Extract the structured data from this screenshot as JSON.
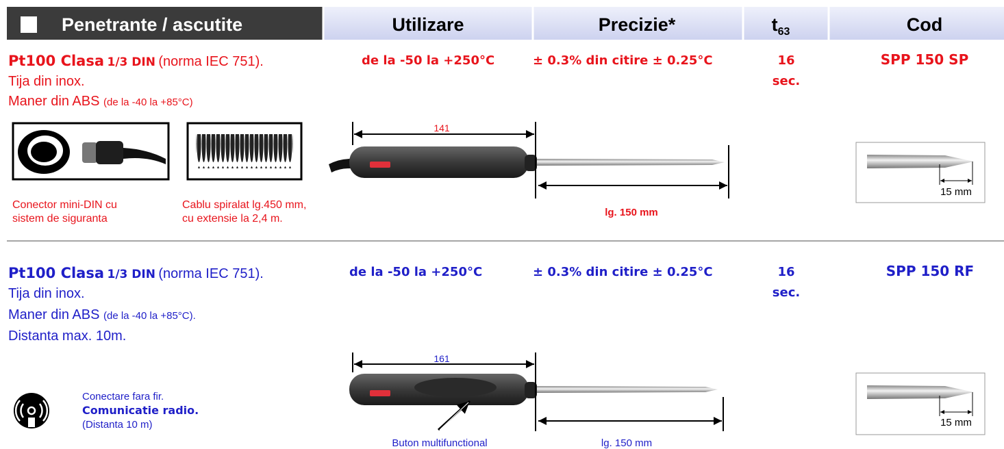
{
  "header": {
    "title": "Penetrante / ascutite",
    "utilizare": "Utilizare",
    "precizie": "Precizie*",
    "t_base": "t",
    "t_sub": "63",
    "cod": "Cod"
  },
  "rows": [
    {
      "model": "Pt100 Clasa",
      "class": "1/3 DIN",
      "norm": "(norma IEC 751).",
      "line2": "Tija din inox.",
      "line3": "Maner din ABS",
      "line3_note": "(de la  -40 la +85°C)",
      "utilizare": "de la -50 la +250°C",
      "precizie": "± 0.3%  din citire ± 0.25°C",
      "t63": "16",
      "t63_unit": "sec.",
      "cod": "SPP 150 SP",
      "accessories": [
        [
          "Conector mini-DIN cu",
          "sistem de siguranta"
        ],
        [
          "Cablu spiralat lg.450 mm,",
          "cu extensie la 2,4 m."
        ]
      ],
      "handle_length": "141",
      "rod_length": "lg. 150 mm",
      "tip": "15 mm"
    },
    {
      "model": "Pt100 Clasa",
      "class": "1/3 DIN",
      "norm": "(norma IEC 751).",
      "line2": "Tija din inox.",
      "line3": "Maner din ABS",
      "line3_note": "(de la  -40 la +85°C).",
      "line4": "Distanta max. 10m.",
      "utilizare": "de la -50 la +250°C",
      "precizie": "± 0.3%  din citire ± 0.25°C",
      "t63": "16",
      "t63_unit": "sec.",
      "cod": "SPP 150 RF",
      "radio": [
        "Conectare fara fir.",
        "Comunicatie radio.",
        "(Distanta 10 m)"
      ],
      "handle_length": "161",
      "button": "Buton multifunctional",
      "rod_length": "lg. 150 mm",
      "tip": "15 mm"
    }
  ]
}
